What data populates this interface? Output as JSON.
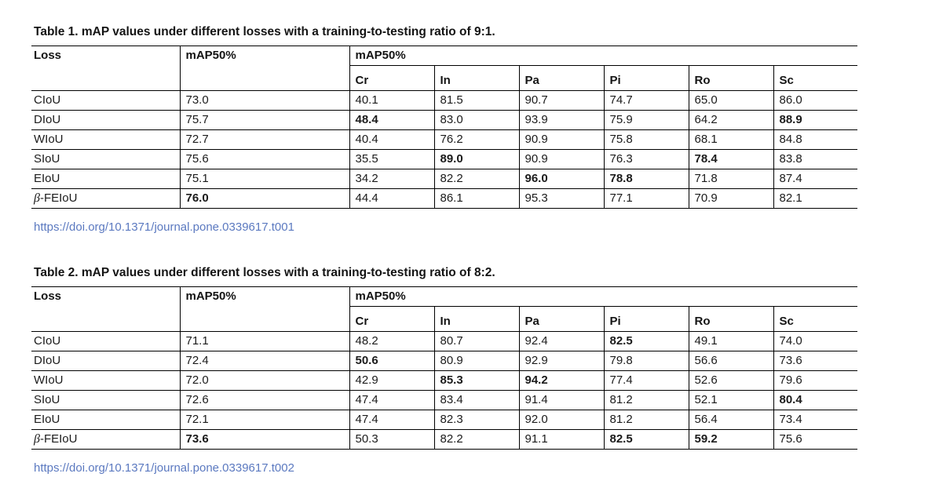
{
  "link_color": "#5b79c0",
  "tables": [
    {
      "title": "Table 1. mAP values under different losses with a training-to-testing ratio of 9:1.",
      "doi": "https://doi.org/10.1371/journal.pone.0339617.t001",
      "header": {
        "loss": "Loss",
        "map": "mAP50%",
        "group": "mAP50%",
        "sub_columns": [
          "Cr",
          "In",
          "Pa",
          "Pi",
          "Ro",
          "Sc"
        ]
      },
      "rows": [
        {
          "loss": "CIoU",
          "values": [
            {
              "v": "73.0",
              "b": false
            },
            {
              "v": "40.1",
              "b": false
            },
            {
              "v": "81.5",
              "b": false
            },
            {
              "v": "90.7",
              "b": false
            },
            {
              "v": "74.7",
              "b": false
            },
            {
              "v": "65.0",
              "b": false
            },
            {
              "v": "86.0",
              "b": false
            }
          ]
        },
        {
          "loss": "DIoU",
          "values": [
            {
              "v": "75.7",
              "b": false
            },
            {
              "v": "48.4",
              "b": true
            },
            {
              "v": "83.0",
              "b": false
            },
            {
              "v": "93.9",
              "b": false
            },
            {
              "v": "75.9",
              "b": false
            },
            {
              "v": "64.2",
              "b": false
            },
            {
              "v": "88.9",
              "b": true
            }
          ]
        },
        {
          "loss": "WIoU",
          "values": [
            {
              "v": "72.7",
              "b": false
            },
            {
              "v": "40.4",
              "b": false
            },
            {
              "v": "76.2",
              "b": false
            },
            {
              "v": "90.9",
              "b": false
            },
            {
              "v": "75.8",
              "b": false
            },
            {
              "v": "68.1",
              "b": false
            },
            {
              "v": "84.8",
              "b": false
            }
          ]
        },
        {
          "loss": "SIoU",
          "values": [
            {
              "v": "75.6",
              "b": false
            },
            {
              "v": "35.5",
              "b": false
            },
            {
              "v": "89.0",
              "b": true
            },
            {
              "v": "90.9",
              "b": false
            },
            {
              "v": "76.3",
              "b": false
            },
            {
              "v": "78.4",
              "b": true
            },
            {
              "v": "83.8",
              "b": false
            }
          ]
        },
        {
          "loss": "EIoU",
          "values": [
            {
              "v": "75.1",
              "b": false
            },
            {
              "v": "34.2",
              "b": false
            },
            {
              "v": "82.2",
              "b": false
            },
            {
              "v": "96.0",
              "b": true
            },
            {
              "v": "78.8",
              "b": true
            },
            {
              "v": "71.8",
              "b": false
            },
            {
              "v": "87.4",
              "b": false
            }
          ]
        },
        {
          "loss": "β-FEIoU",
          "values": [
            {
              "v": "76.0",
              "b": true
            },
            {
              "v": "44.4",
              "b": false
            },
            {
              "v": "86.1",
              "b": false
            },
            {
              "v": "95.3",
              "b": false
            },
            {
              "v": "77.1",
              "b": false
            },
            {
              "v": "70.9",
              "b": false
            },
            {
              "v": "82.1",
              "b": false
            }
          ]
        }
      ]
    },
    {
      "title": "Table 2. mAP values under different losses with a training-to-testing ratio of 8:2.",
      "doi": "https://doi.org/10.1371/journal.pone.0339617.t002",
      "header": {
        "loss": "Loss",
        "map": "mAP50%",
        "group": "mAP50%",
        "sub_columns": [
          "Cr",
          "In",
          "Pa",
          "Pi",
          "Ro",
          "Sc"
        ]
      },
      "rows": [
        {
          "loss": "CIoU",
          "values": [
            {
              "v": "71.1",
              "b": false
            },
            {
              "v": "48.2",
              "b": false
            },
            {
              "v": "80.7",
              "b": false
            },
            {
              "v": "92.4",
              "b": false
            },
            {
              "v": "82.5",
              "b": true
            },
            {
              "v": "49.1",
              "b": false
            },
            {
              "v": "74.0",
              "b": false
            }
          ]
        },
        {
          "loss": "DIoU",
          "values": [
            {
              "v": "72.4",
              "b": false
            },
            {
              "v": "50.6",
              "b": true
            },
            {
              "v": "80.9",
              "b": false
            },
            {
              "v": "92.9",
              "b": false
            },
            {
              "v": "79.8",
              "b": false
            },
            {
              "v": "56.6",
              "b": false
            },
            {
              "v": "73.6",
              "b": false
            }
          ]
        },
        {
          "loss": "WIoU",
          "values": [
            {
              "v": "72.0",
              "b": false
            },
            {
              "v": "42.9",
              "b": false
            },
            {
              "v": "85.3",
              "b": true
            },
            {
              "v": "94.2",
              "b": true
            },
            {
              "v": "77.4",
              "b": false
            },
            {
              "v": "52.6",
              "b": false
            },
            {
              "v": "79.6",
              "b": false
            }
          ]
        },
        {
          "loss": "SIoU",
          "values": [
            {
              "v": "72.6",
              "b": false
            },
            {
              "v": "47.4",
              "b": false
            },
            {
              "v": "83.4",
              "b": false
            },
            {
              "v": "91.4",
              "b": false
            },
            {
              "v": "81.2",
              "b": false
            },
            {
              "v": "52.1",
              "b": false
            },
            {
              "v": "80.4",
              "b": true
            }
          ]
        },
        {
          "loss": "EIoU",
          "values": [
            {
              "v": "72.1",
              "b": false
            },
            {
              "v": "47.4",
              "b": false
            },
            {
              "v": "82.3",
              "b": false
            },
            {
              "v": "92.0",
              "b": false
            },
            {
              "v": "81.2",
              "b": false
            },
            {
              "v": "56.4",
              "b": false
            },
            {
              "v": "73.4",
              "b": false
            }
          ]
        },
        {
          "loss": "β-FEIoU",
          "values": [
            {
              "v": "73.6",
              "b": true
            },
            {
              "v": "50.3",
              "b": false
            },
            {
              "v": "82.2",
              "b": false
            },
            {
              "v": "91.1",
              "b": false
            },
            {
              "v": "82.5",
              "b": true
            },
            {
              "v": "59.2",
              "b": true
            },
            {
              "v": "75.6",
              "b": false
            }
          ]
        }
      ]
    }
  ]
}
